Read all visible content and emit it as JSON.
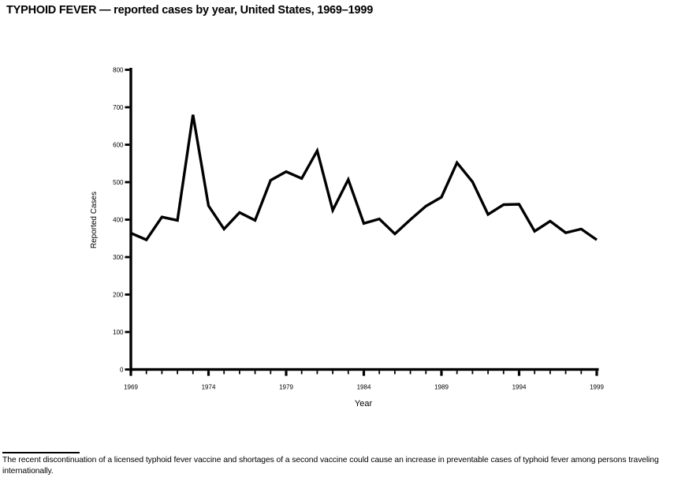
{
  "title": "TYPHOID FEVER — reported cases by year, United States, 1969–1999",
  "chart_data": {
    "type": "line",
    "title": "TYPHOID FEVER — reported cases by year, United States, 1969–1999",
    "xlabel": "Year",
    "ylabel": "Reported Cases",
    "ylim": [
      0,
      800
    ],
    "ytick_interval": 100,
    "yticks": [
      0,
      100,
      200,
      300,
      400,
      500,
      600,
      700,
      800
    ],
    "xticks_labeled": [
      1969,
      1974,
      1979,
      1984,
      1989,
      1994,
      1999
    ],
    "x": [
      1969,
      1970,
      1971,
      1972,
      1973,
      1974,
      1975,
      1976,
      1977,
      1978,
      1979,
      1980,
      1981,
      1982,
      1983,
      1984,
      1985,
      1986,
      1987,
      1988,
      1989,
      1990,
      1991,
      1992,
      1993,
      1994,
      1995,
      1996,
      1997,
      1998,
      1999
    ],
    "values": [
      364,
      346,
      407,
      398,
      680,
      437,
      375,
      419,
      398,
      505,
      528,
      510,
      584,
      425,
      507,
      390,
      402,
      362,
      400,
      436,
      460,
      552,
      501,
      414,
      440,
      441,
      369,
      396,
      365,
      375,
      346
    ],
    "line_color": "#000000",
    "axis_color": "#000000",
    "grid": false,
    "legend": false
  },
  "footnote": {
    "text": "The recent discontinuation of a licensed typhoid fever vaccine and shortages of a second vaccine could cause an increase in preventable cases of typhoid fever among persons traveling internationally."
  }
}
